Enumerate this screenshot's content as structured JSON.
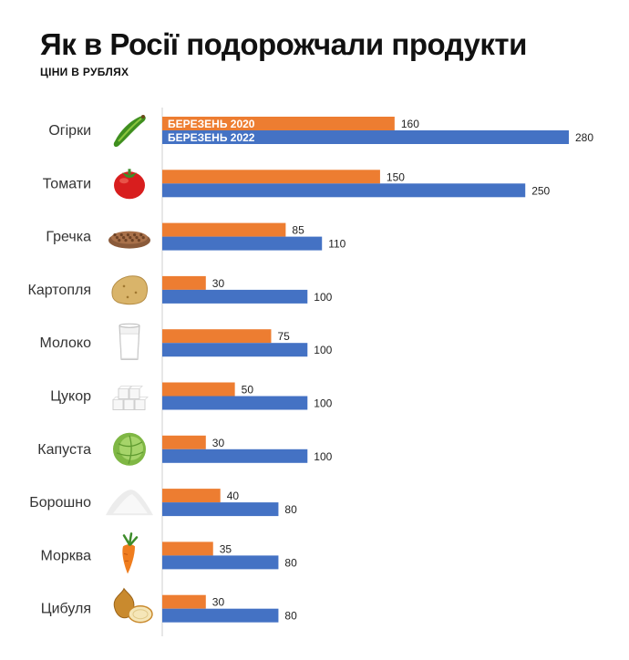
{
  "header": {
    "title": "Як в Росії подорожчали продукти",
    "subtitle": "ЦІНИ В РУБЛЯХ"
  },
  "chart_data": {
    "type": "bar",
    "orientation": "horizontal",
    "title": "Як в Росії подорожчали продукти",
    "subtitle": "ЦІНИ В РУБЛЯХ",
    "categories": [
      "Огірки",
      "Томати",
      "Гречка",
      "Картопля",
      "Молоко",
      "Цукор",
      "Капуста",
      "Борошно",
      "Морква",
      "Цибуля"
    ],
    "series": [
      {
        "name": "БЕРЕЗЕНЬ 2020",
        "color": "#ED7D31",
        "values": [
          160,
          150,
          85,
          30,
          75,
          50,
          30,
          40,
          35,
          30
        ]
      },
      {
        "name": "БЕРЕЗЕНЬ 2022",
        "color": "#4472C4",
        "values": [
          280,
          250,
          110,
          100,
          100,
          100,
          100,
          80,
          80,
          80
        ]
      }
    ],
    "xlim": [
      0,
      280
    ],
    "grid": false,
    "legend": "inside first bars",
    "icons": [
      "cucumber-icon",
      "tomato-icon",
      "buckwheat-icon",
      "potato-icon",
      "milk-glass-icon",
      "sugar-cubes-icon",
      "cabbage-icon",
      "flour-icon",
      "carrot-icon",
      "onion-icon"
    ]
  }
}
